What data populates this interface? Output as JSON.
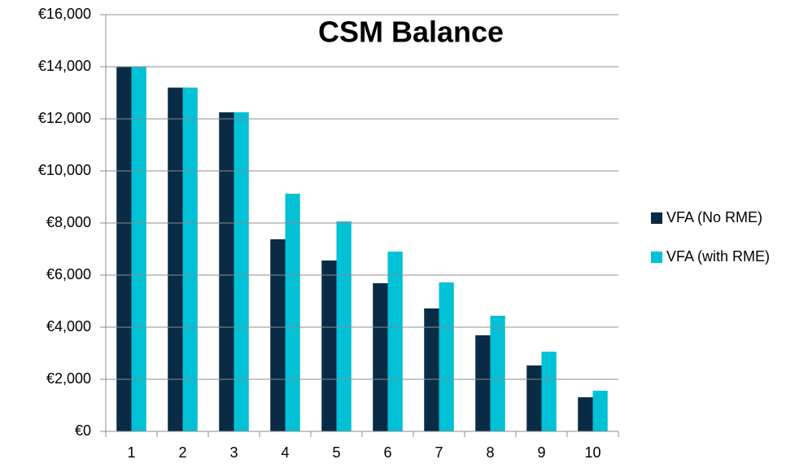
{
  "chart_data": {
    "type": "bar",
    "title": "CSM Balance",
    "categories": [
      "1",
      "2",
      "3",
      "4",
      "5",
      "6",
      "7",
      "8",
      "9",
      "10"
    ],
    "series": [
      {
        "name": "VFA (No RME)",
        "color": "#0a2b45",
        "values": [
          14000,
          13200,
          12250,
          7375,
          6560,
          5690,
          4720,
          3690,
          2530,
          1310
        ]
      },
      {
        "name": "VFA (with RME)",
        "color": "#00c1d6",
        "values": [
          14000,
          13200,
          12250,
          9125,
          8060,
          6900,
          5720,
          4440,
          3060,
          1560
        ]
      }
    ],
    "ylim": [
      0,
      16000
    ],
    "yticks": [
      {
        "value": 0,
        "label": "€0"
      },
      {
        "value": 2000,
        "label": "€2,000"
      },
      {
        "value": 4000,
        "label": "€4,000"
      },
      {
        "value": 6000,
        "label": "€6,000"
      },
      {
        "value": 8000,
        "label": "€8,000"
      },
      {
        "value": 10000,
        "label": "€10,000"
      },
      {
        "value": 12000,
        "label": "€12,000"
      },
      {
        "value": 14000,
        "label": "€14,000"
      },
      {
        "value": 16000,
        "label": "€16,000"
      }
    ],
    "grid": true,
    "legend": "right"
  }
}
